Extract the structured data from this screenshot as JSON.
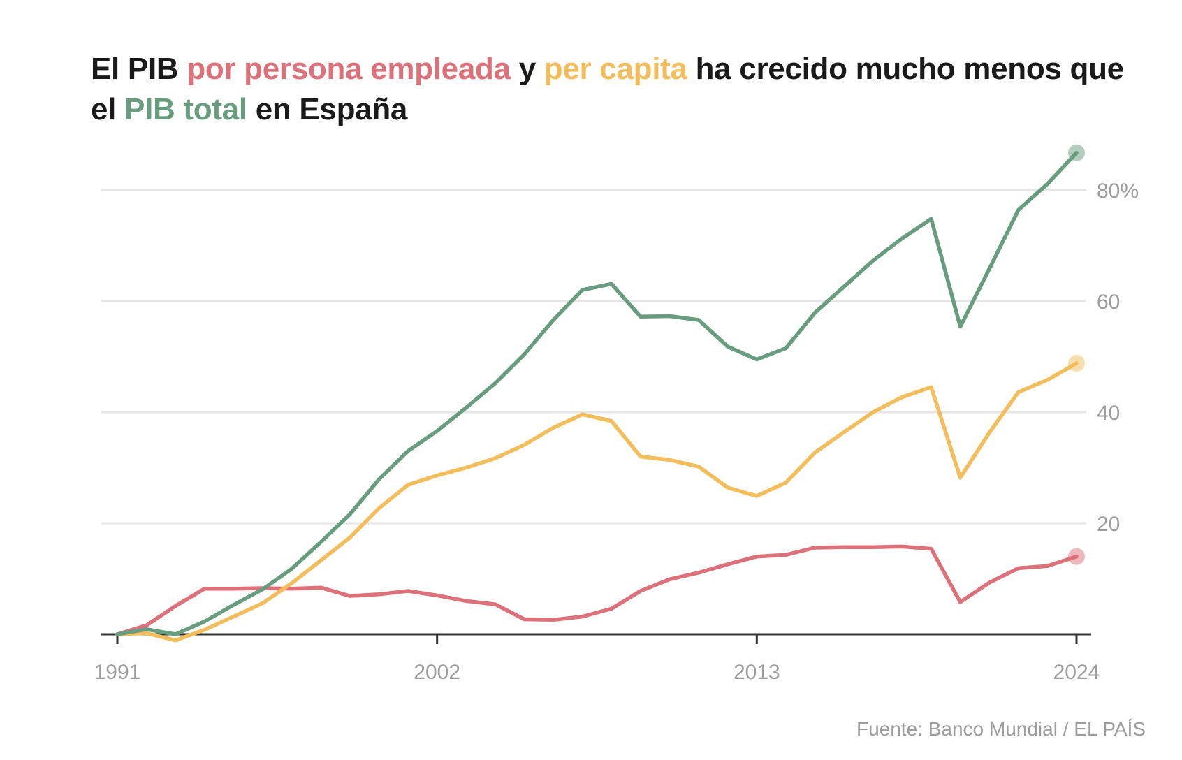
{
  "title": {
    "parts": [
      {
        "text": "El PIB ",
        "color": "#1a1a1a"
      },
      {
        "text": "por persona empleada",
        "color": "#dd7179"
      },
      {
        "text": " y ",
        "color": "#1a1a1a"
      },
      {
        "text": "per capita",
        "color": "#f3bd5b"
      },
      {
        "text": " ha crecido mucho menos que el ",
        "color": "#1a1a1a"
      },
      {
        "text": "PIB total",
        "color": "#679c7e"
      },
      {
        "text": " en España",
        "color": "#1a1a1a"
      }
    ]
  },
  "source": "Fuente: Banco Mundial / EL PAÍS",
  "chart_data": {
    "type": "line",
    "x": [
      1991,
      1992,
      1993,
      1994,
      1995,
      1996,
      1997,
      1998,
      1999,
      2000,
      2001,
      2002,
      2003,
      2004,
      2005,
      2006,
      2007,
      2008,
      2009,
      2010,
      2011,
      2012,
      2013,
      2014,
      2015,
      2016,
      2017,
      2018,
      2019,
      2020,
      2021,
      2022,
      2023,
      2024
    ],
    "series": [
      {
        "name": "PIB total",
        "color": "#679c7e",
        "values": [
          0,
          0.9,
          0,
          2.3,
          5.3,
          8.1,
          11.8,
          16.6,
          21.6,
          27.9,
          33,
          36.6,
          40.8,
          45.2,
          50.4,
          56.6,
          62,
          63.1,
          57.2,
          57.3,
          56.6,
          51.8,
          49.5,
          51.5,
          57.9,
          62.6,
          67.3,
          71.3,
          74.8,
          55.4,
          65.8,
          76.4,
          81.1,
          86.7
        ]
      },
      {
        "name": "per capita",
        "color": "#f3bd5b",
        "values": [
          0,
          0.2,
          -1.1,
          0.8,
          3.2,
          5.6,
          9.2,
          13.3,
          17.4,
          22.7,
          26.9,
          28.6,
          30,
          31.7,
          34.1,
          37.2,
          39.6,
          38.4,
          32,
          31.4,
          30.2,
          26.4,
          24.9,
          27.3,
          32.7,
          36.4,
          40,
          42.7,
          44.5,
          28.2,
          36.3,
          43.6,
          45.8,
          48.8
        ]
      },
      {
        "name": "por persona empleada",
        "color": "#dd7179",
        "values": [
          0,
          1.6,
          5.1,
          8.2,
          8.2,
          8.3,
          8.2,
          8.4,
          6.9,
          7.2,
          7.8,
          7,
          6,
          5.4,
          2.7,
          2.6,
          3.2,
          4.6,
          7.8,
          9.9,
          11.1,
          12.6,
          14,
          14.3,
          15.6,
          15.7,
          15.7,
          15.8,
          15.4,
          5.8,
          9.3,
          11.9,
          12.3,
          14
        ]
      }
    ],
    "y_ticks": [
      20,
      40,
      60,
      80
    ],
    "y_tick_labels": [
      "20",
      "40",
      "60",
      "80%"
    ],
    "x_ticks": [
      1991,
      2002,
      2013,
      2024
    ],
    "x_tick_labels": [
      "1991",
      "2002",
      "2013",
      "2024"
    ],
    "ylim": [
      0,
      87
    ],
    "xlabel": "",
    "ylabel": "",
    "grid": true,
    "y_axis_side": "right"
  }
}
